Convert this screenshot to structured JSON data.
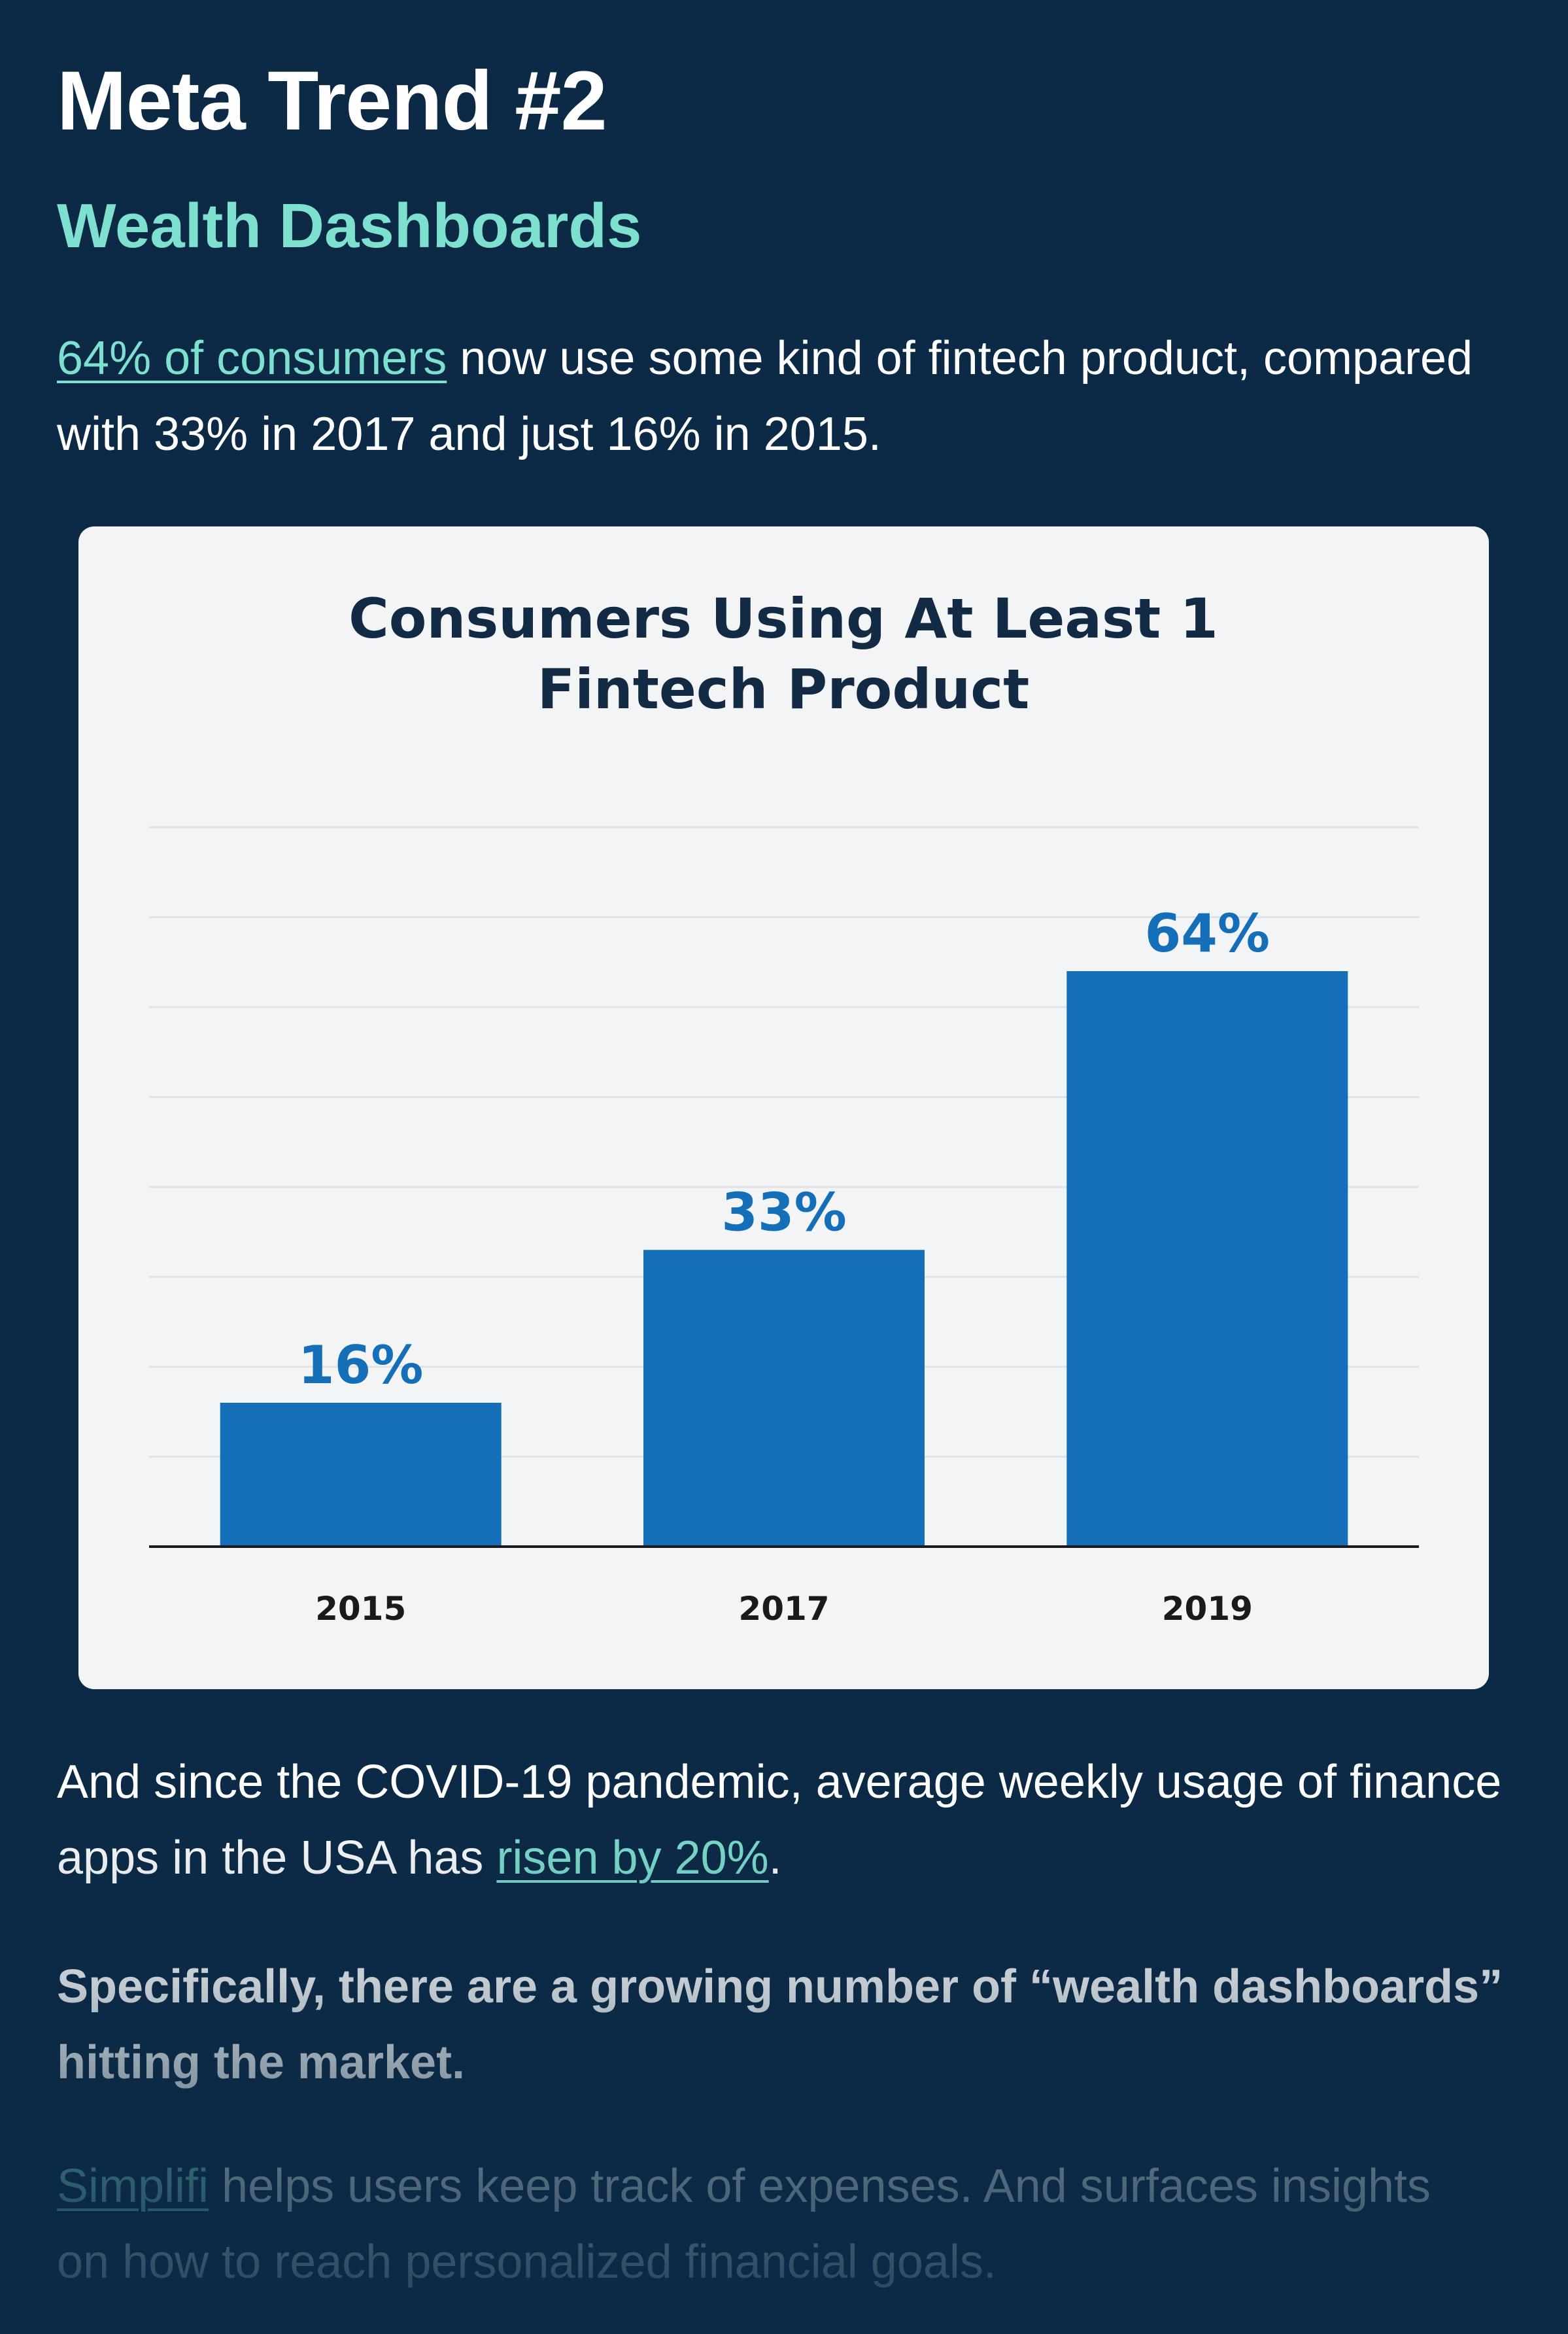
{
  "heading": "Meta Trend #2",
  "subheading": "Wealth Dashboards",
  "intro": {
    "link": "64% of consumers",
    "text": " now use some kind of fintech product, compared with 33% in 2017 and just 16% in 2015."
  },
  "chart_data": {
    "type": "bar",
    "title_line1": "Consumers Using At Least 1",
    "title_line2": "Fintech Product",
    "categories": [
      "2015",
      "2017",
      "2019"
    ],
    "values": [
      16,
      33,
      64
    ],
    "data_labels": [
      "16%",
      "33%",
      "64%"
    ],
    "ylim": [
      0,
      80
    ],
    "xlabel": "",
    "ylabel": "",
    "grid": true,
    "bar_color": "#146fb8",
    "label_color": "#146fb8"
  },
  "covid_para": {
    "text_before": "And since the COVID-19 pandemic, average weekly usage of finance apps in the USA has ",
    "link": "risen by 20%",
    "text_after": "."
  },
  "bold_para": "Specifically, there are a growing number of “wealth dashboards” hitting the market.",
  "simplifi_para": {
    "link": "Simplifi",
    "line1_rest": " helps users keep track of expenses. And surfaces insights",
    "line2": "on how to reach personalized financial goals."
  },
  "colors": {
    "background": "#0c2a45",
    "accent": "#7ee0cf",
    "card": "#f3f4f6",
    "chart_title": "#132a44"
  }
}
